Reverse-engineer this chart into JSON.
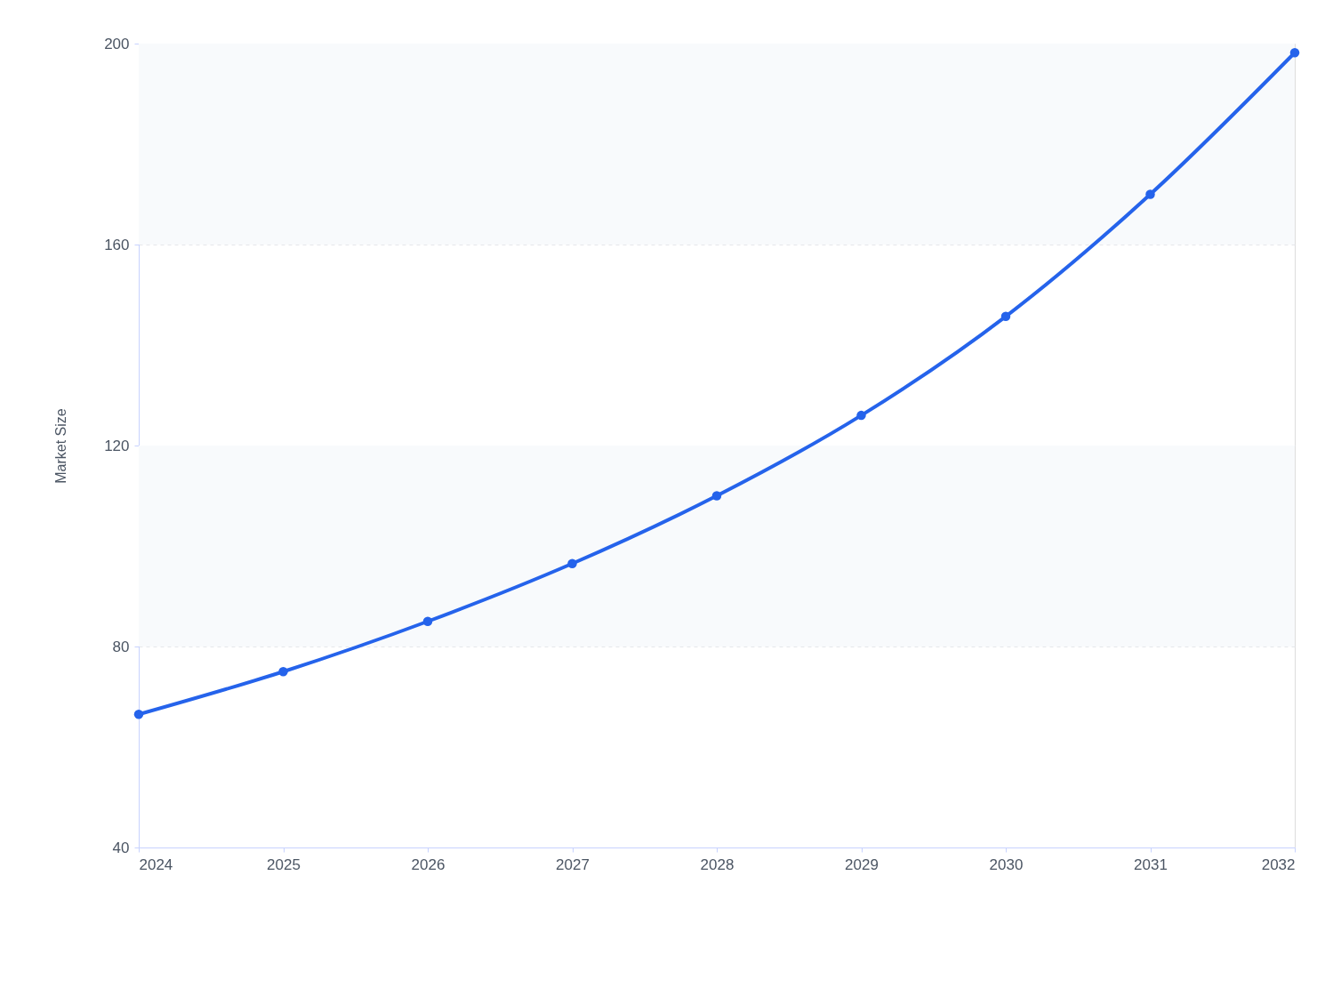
{
  "chart_data": {
    "type": "line",
    "ylabel": "Market Size",
    "x": [
      2024,
      2025,
      2026,
      2027,
      2028,
      2029,
      2030,
      2031,
      2032
    ],
    "series": [
      {
        "color": "#2563eb",
        "values": [
          66.5,
          75,
          85,
          96.5,
          110,
          126,
          145.7,
          170,
          198.2
        ]
      }
    ],
    "xlim": [
      2024,
      2032
    ],
    "xticks": [
      2024,
      2025,
      2026,
      2027,
      2028,
      2029,
      2030,
      2031,
      2032
    ],
    "ylim": [
      40,
      200
    ],
    "yticks": [
      40,
      80,
      120,
      160,
      200
    ],
    "bands": [
      {
        "axis": "y",
        "from": 80,
        "to": 120,
        "color": "#f8fafc"
      },
      {
        "axis": "y",
        "from": 160,
        "to": 200,
        "color": "#f8fafc"
      }
    ],
    "grid": "y",
    "marker": "circle",
    "line_style": "solid"
  }
}
